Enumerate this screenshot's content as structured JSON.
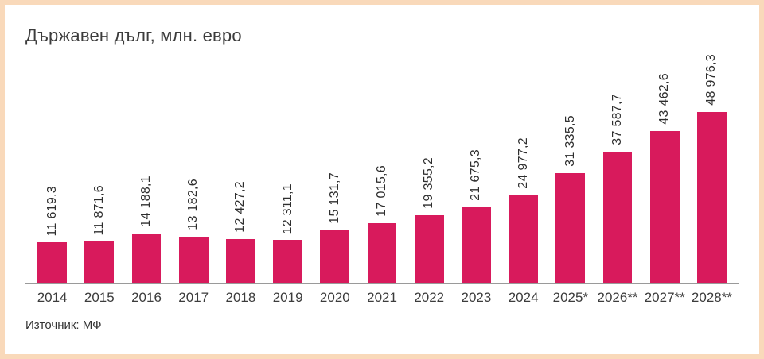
{
  "page": {
    "title": "Държавен дълг, млн. евро",
    "source": "Източник: МФ"
  },
  "colors": {
    "bar": "#d81a5c",
    "frame_border": "#f9d9ba",
    "axis": "#9a9a9a",
    "text": "#3c3c3c"
  },
  "chart_data": {
    "type": "bar",
    "title": "Държавен дълг, млн. евро",
    "categories": [
      "2014",
      "2015",
      "2016",
      "2017",
      "2018",
      "2019",
      "2020",
      "2021",
      "2022",
      "2023",
      "2024",
      "2025*",
      "2026**",
      "2027**",
      "2028**"
    ],
    "values": [
      11619.3,
      11871.6,
      14188.1,
      13182.6,
      12427.2,
      12311.1,
      15131.7,
      17015.6,
      19355.2,
      21675.3,
      24977.2,
      31335.5,
      37587.7,
      43462.6,
      48976.3
    ],
    "value_labels": [
      "11 619,3",
      "11 871,6",
      "14 188,1",
      "13 182,6",
      "12 427,2",
      "12 311,1",
      "15 131,7",
      "17 015,6",
      "19 355,2",
      "21 675,3",
      "24 977,2",
      "31 335,5",
      "37 587,7",
      "43 462,6",
      "48 976,3"
    ],
    "xlabel": "",
    "ylabel": "млн. евро",
    "ylim": [
      0,
      48976.3
    ],
    "grid": false,
    "legend": false,
    "bar_color": "#d81a5c",
    "value_label_rotation_deg": 90,
    "source": "Източник: МФ"
  }
}
